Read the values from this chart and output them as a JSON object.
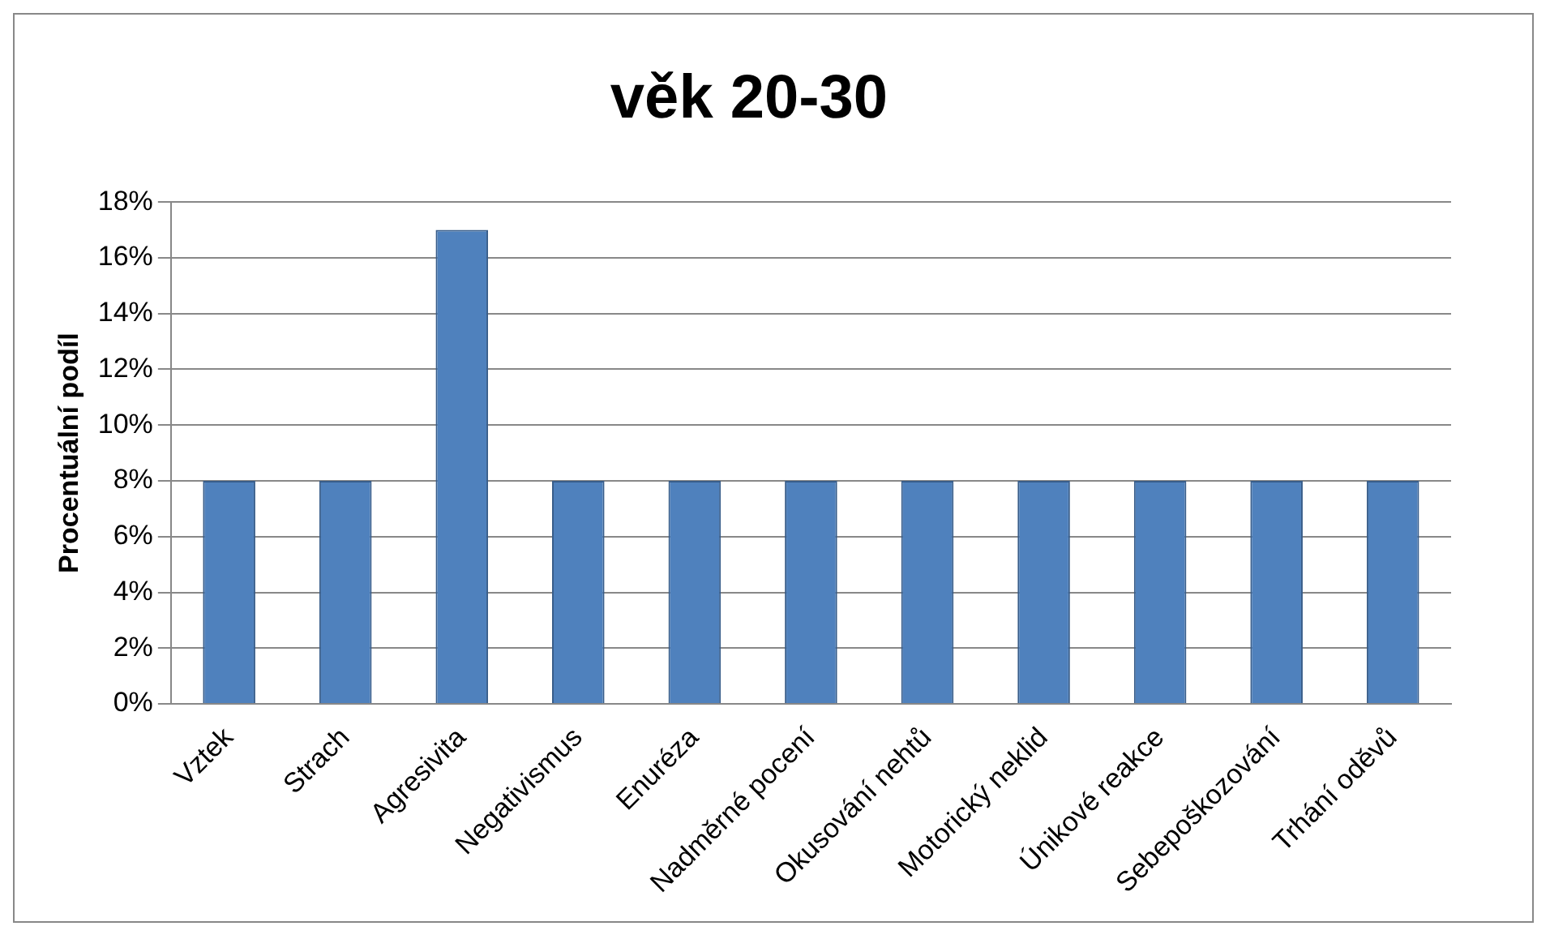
{
  "chart_data": {
    "type": "bar",
    "title": "věk 20-30",
    "ylabel": "Procentuální podíl",
    "categories": [
      "Vztek",
      "Strach",
      "Agresivita",
      "Negativismus",
      "Enuréza",
      "Nadměrné pocení",
      "Okusování nehtů",
      "Motorický neklid",
      "Únikové reakce",
      "Sebepoškozování",
      "Trhání oděvů"
    ],
    "values": [
      8,
      8,
      17,
      8,
      8,
      8,
      8,
      8,
      8,
      8,
      8
    ],
    "color": "#4f81bd",
    "ylim": [
      0,
      18
    ],
    "yticks": [
      {
        "value": 0,
        "label": "0%"
      },
      {
        "value": 2,
        "label": "2%"
      },
      {
        "value": 4,
        "label": "4%"
      },
      {
        "value": 6,
        "label": "6%"
      },
      {
        "value": 8,
        "label": "8%"
      },
      {
        "value": 10,
        "label": "10%"
      },
      {
        "value": 12,
        "label": "12%"
      },
      {
        "value": 14,
        "label": "14%"
      },
      {
        "value": 16,
        "label": "16%"
      },
      {
        "value": 18,
        "label": "18%"
      }
    ],
    "grid": "y",
    "legend": false
  }
}
